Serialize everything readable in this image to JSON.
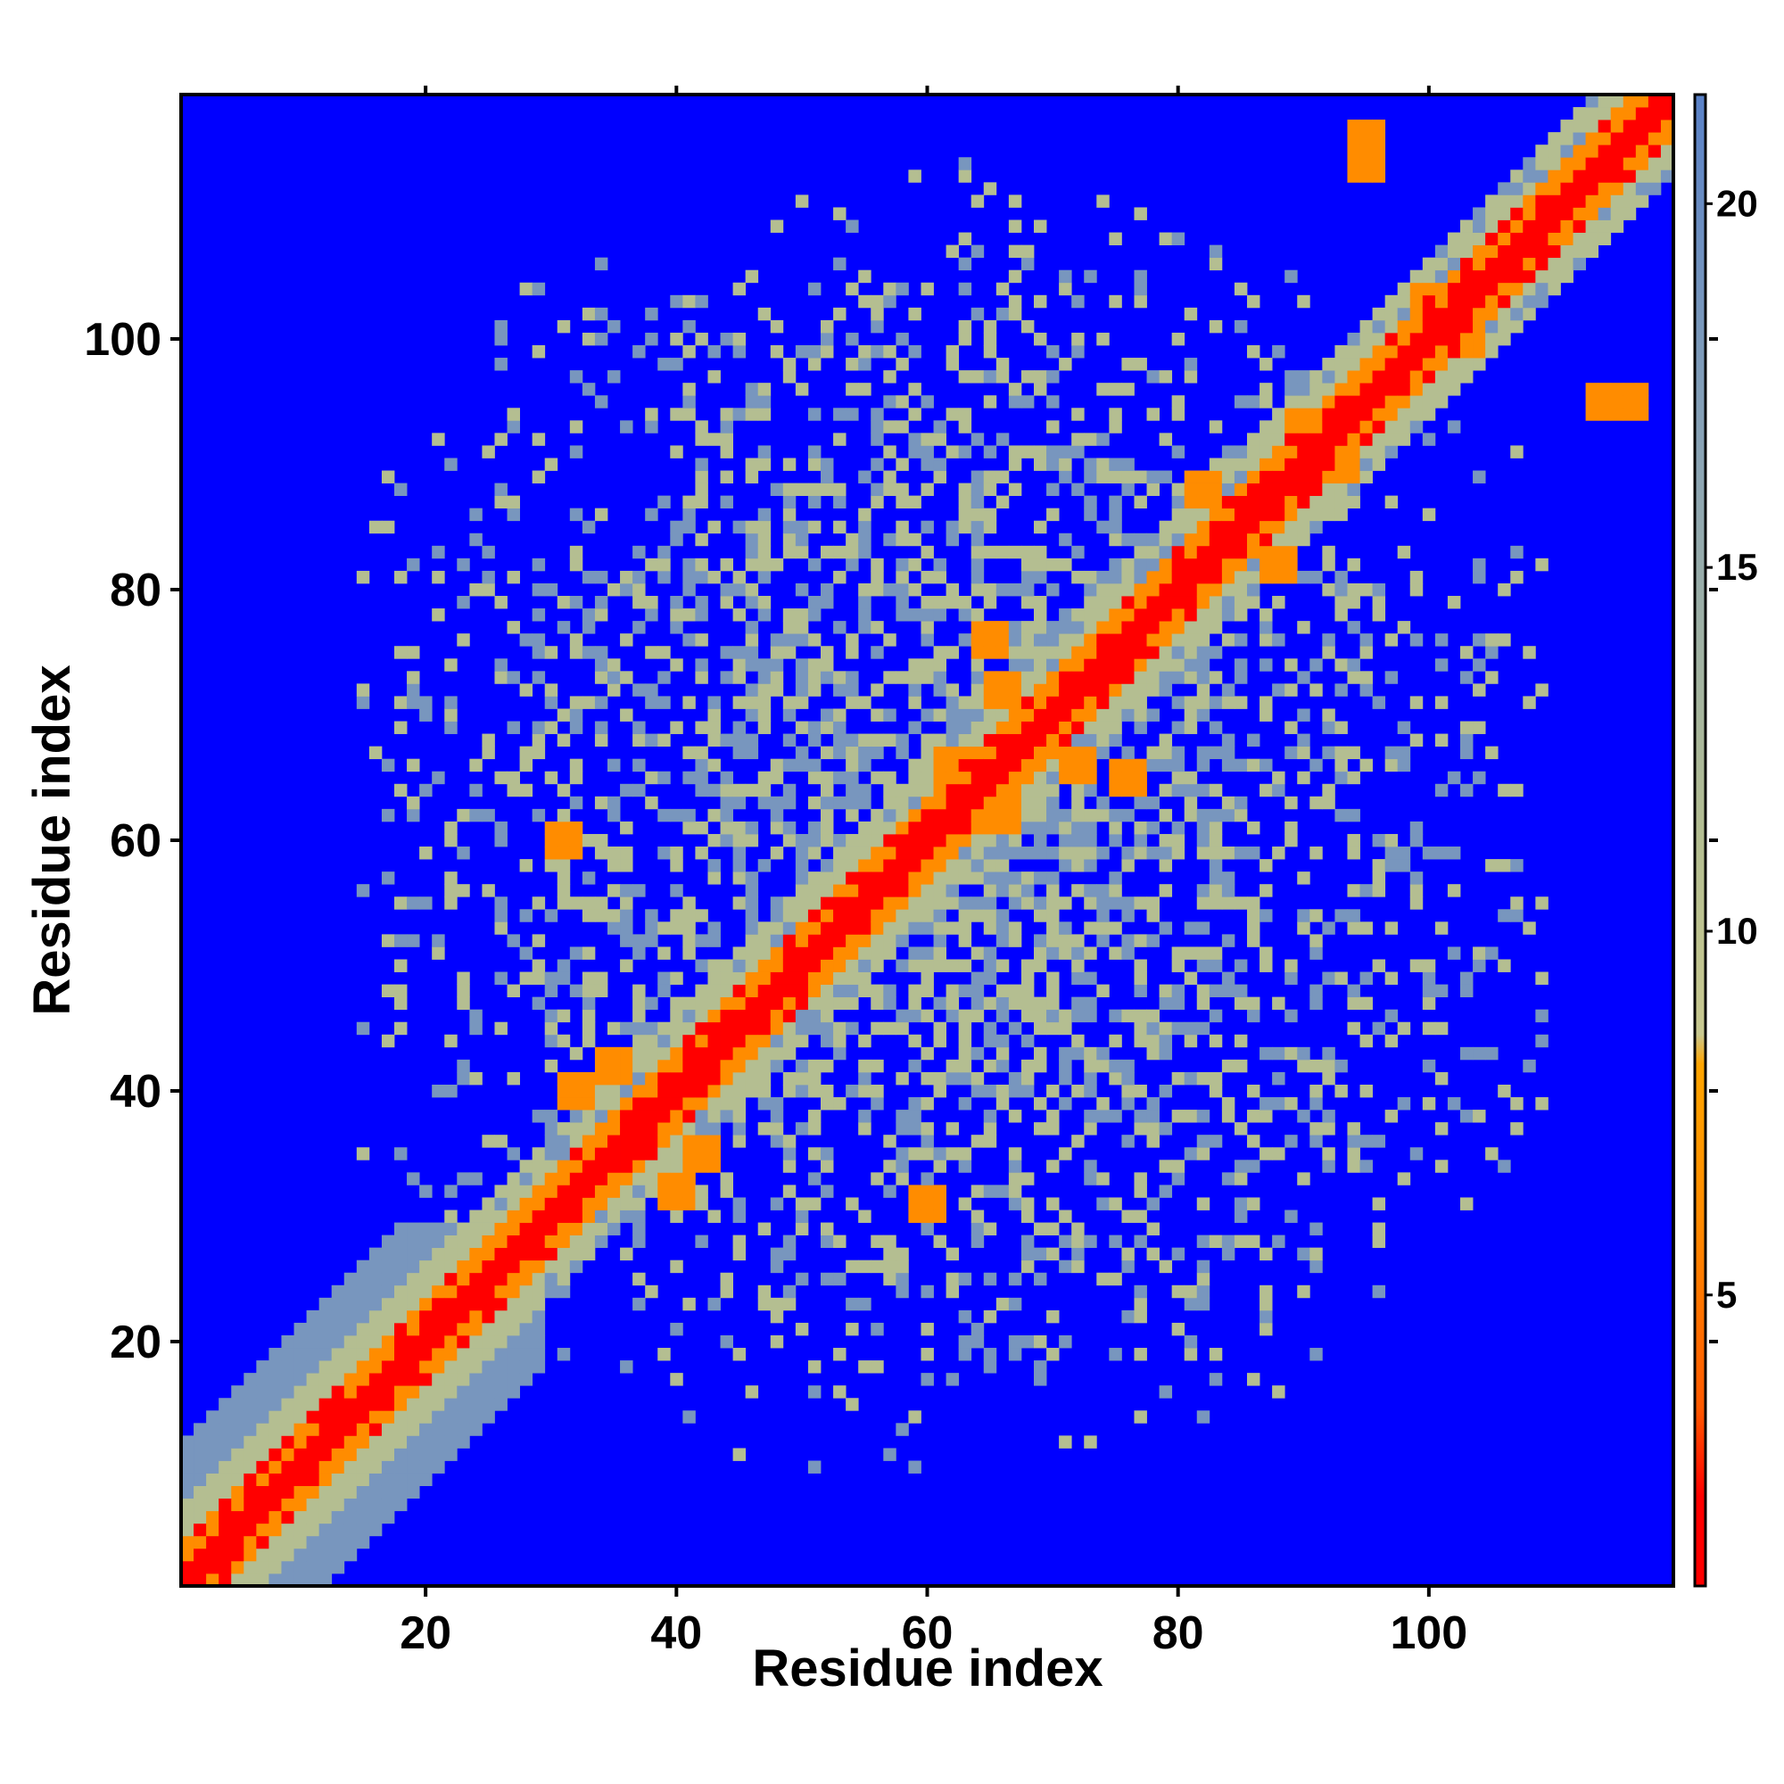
{
  "chart_data": {
    "type": "heatmap",
    "title": "",
    "xlabel": "Residue index",
    "ylabel": "Residue index",
    "n_residues": 119,
    "xlim": [
      1,
      119
    ],
    "ylim": [
      1,
      119
    ],
    "x_ticks": [
      20,
      40,
      60,
      80,
      100
    ],
    "y_ticks": [
      20,
      40,
      60,
      80,
      100
    ],
    "colorbar": {
      "range": [
        1,
        21.5
      ],
      "ticks": [
        5,
        10,
        15,
        20
      ],
      "colors": {
        "close": "#ff0000",
        "near": "#ff8c00",
        "mid": "#b4be91",
        "far": "#7896be",
        "background": "#0000ff"
      }
    },
    "colorbar_ticklabels": [
      "5",
      "10",
      "15",
      "20"
    ],
    "contact_clusters": [
      {
        "i": 40,
        "j": 32,
        "value": 7
      },
      {
        "i": 35,
        "j": 42,
        "value": 6
      },
      {
        "i": 65,
        "j": 76,
        "value": 6
      },
      {
        "i": 72,
        "j": 66,
        "value": 6
      },
      {
        "i": 88,
        "j": 82,
        "value": 6
      },
      {
        "i": 90,
        "j": 93,
        "value": 5
      },
      {
        "i": 103,
        "j": 100,
        "value": 6
      },
      {
        "i": 60,
        "j": 31,
        "value": 6
      },
      {
        "i": 62,
        "j": 66,
        "value": 7
      },
      {
        "i": 95,
        "j": 116,
        "value": 7
      },
      {
        "i": 114,
        "j": 95,
        "value": 7
      }
    ],
    "scattered_region": {
      "i_range": [
        15,
        110
      ],
      "j_range": [
        10,
        115
      ]
    }
  },
  "x_ticklabels": [
    "20",
    "40",
    "60",
    "80",
    "100"
  ],
  "y_ticklabels": [
    "20",
    "40",
    "60",
    "80",
    "100"
  ]
}
